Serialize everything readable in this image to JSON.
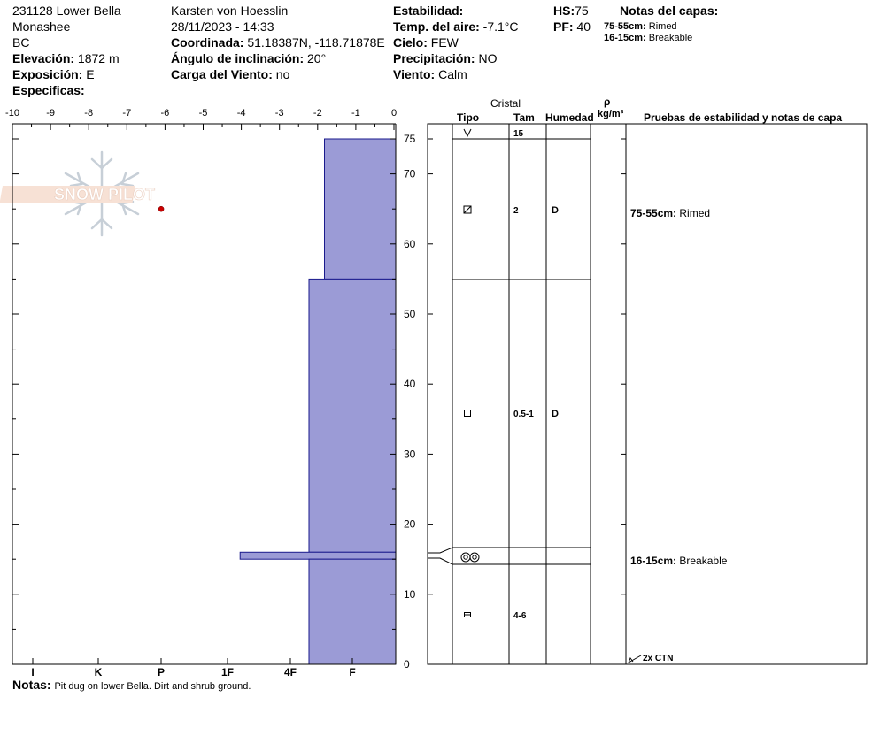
{
  "header": {
    "location": "231128 Lower Bella",
    "range": "Monashee",
    "state": "BC",
    "elevation_label": "Elevación:",
    "elevation_value": "1872 m",
    "aspect_label": "Exposición:",
    "aspect_value": "E",
    "specifics_label": "Especificas:",
    "observer": "Karsten  von Hoesslin",
    "datetime": "28/11/2023 - 14:33",
    "coords_label": "Coordinada:",
    "coords_value": "51.18387N, -118.71878E",
    "slope_label": "Ángulo de inclinación:",
    "slope_value": "20°",
    "wind_load_label": "Carga del Viento:",
    "wind_load_value": "no",
    "stability_label": "Estabilidad:",
    "air_temp_label": "Temp. del aire:",
    "air_temp_value": "-7.1°C",
    "sky_label": "Cielo:",
    "sky_value": "FEW",
    "precip_label": "Precipitación:",
    "precip_value": "NO",
    "wind_label": "Viento:",
    "wind_value": "Calm",
    "hs_label": "HS:",
    "hs_value": "75",
    "pf_label": "PF:",
    "pf_value": "40",
    "layer_notes_title": "Notas del capas:",
    "layer_notes": [
      {
        "range": "75-55cm:",
        "text": "Rimed"
      },
      {
        "range": "16-15cm:",
        "text": "Breakable"
      }
    ]
  },
  "columns": {
    "crystal": "Cristal",
    "type": "Tipo",
    "size": "Tam",
    "moisture": "Humedad",
    "rho": "ρ",
    "density_unit": "kg/m³",
    "tests": "Pruebas de estabilidad y notas de capa"
  },
  "notes_label": "Notas:",
  "notes_text": "Pit dug on lower Bella. Dirt and shrub ground.",
  "chart_data": {
    "type": "bar",
    "subtype": "snow-profile-hardness",
    "temp_axis": {
      "ticks": [
        "-10",
        "-9",
        "-8",
        "-7",
        "-6",
        "-5",
        "-4",
        "-3",
        "-2",
        "-1",
        "0"
      ],
      "range": [
        -10,
        0
      ]
    },
    "depth_axis": {
      "ticks": [
        "0",
        "10",
        "20",
        "30",
        "40",
        "50",
        "60",
        "70",
        "75"
      ],
      "range": [
        0,
        75
      ]
    },
    "hardness_axis": [
      "I",
      "K",
      "P",
      "1F",
      "4F",
      "F"
    ],
    "hardness_index": {
      "F": 1,
      "4F": 2,
      "1F": 3,
      "P": 4,
      "K": 5,
      "I": 6
    },
    "temperature_points": [
      {
        "temp": -6.1,
        "depth": 65
      }
    ],
    "layers": [
      {
        "top": 75,
        "bottom": 55,
        "hardness": 1.45,
        "crystal": "rime",
        "size": "2",
        "moisture": "D",
        "note": "75-55cm:",
        "note_text": "Rimed"
      },
      {
        "top": 55,
        "bottom": 16,
        "hardness": 1.7,
        "crystal": "facet",
        "size": "0.5-1",
        "moisture": "D",
        "note": "",
        "note_text": ""
      },
      {
        "top": 16,
        "bottom": 15,
        "hardness": 2.8,
        "crystal": "melt-form",
        "size": "",
        "moisture": "",
        "note": "16-15cm:",
        "note_text": "Breakable"
      },
      {
        "top": 15,
        "bottom": 0,
        "hardness": 1.7,
        "crystal": "depth-hoar",
        "size": "4-6",
        "moisture": "",
        "note": "",
        "note_text": ""
      }
    ],
    "surface": {
      "crystal": "new-snow",
      "size": "15"
    },
    "stability_test": {
      "depth": 0,
      "text": "2x CTN"
    }
  },
  "logo_text": "SNOW PILOT",
  "colors": {
    "layer_fill": "#9b9bd6",
    "layer_stroke": "#1a1a8c",
    "temp_point": "#cc0000",
    "logo": "#e8b49a"
  }
}
